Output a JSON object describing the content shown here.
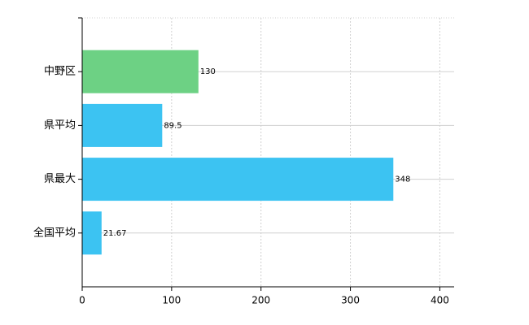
{
  "chart_data": {
    "type": "hbar",
    "categories": [
      "中野区",
      "県平均",
      "県最大",
      "全国平均"
    ],
    "values": [
      130,
      89.5,
      348,
      21.67
    ],
    "colors": [
      "#6dd184",
      "#3cc3f2",
      "#3cc3f2",
      "#3cc3f2"
    ],
    "xlim": [
      0,
      416
    ],
    "xticks": [
      0,
      100,
      200,
      300,
      400
    ],
    "grid": true
  }
}
